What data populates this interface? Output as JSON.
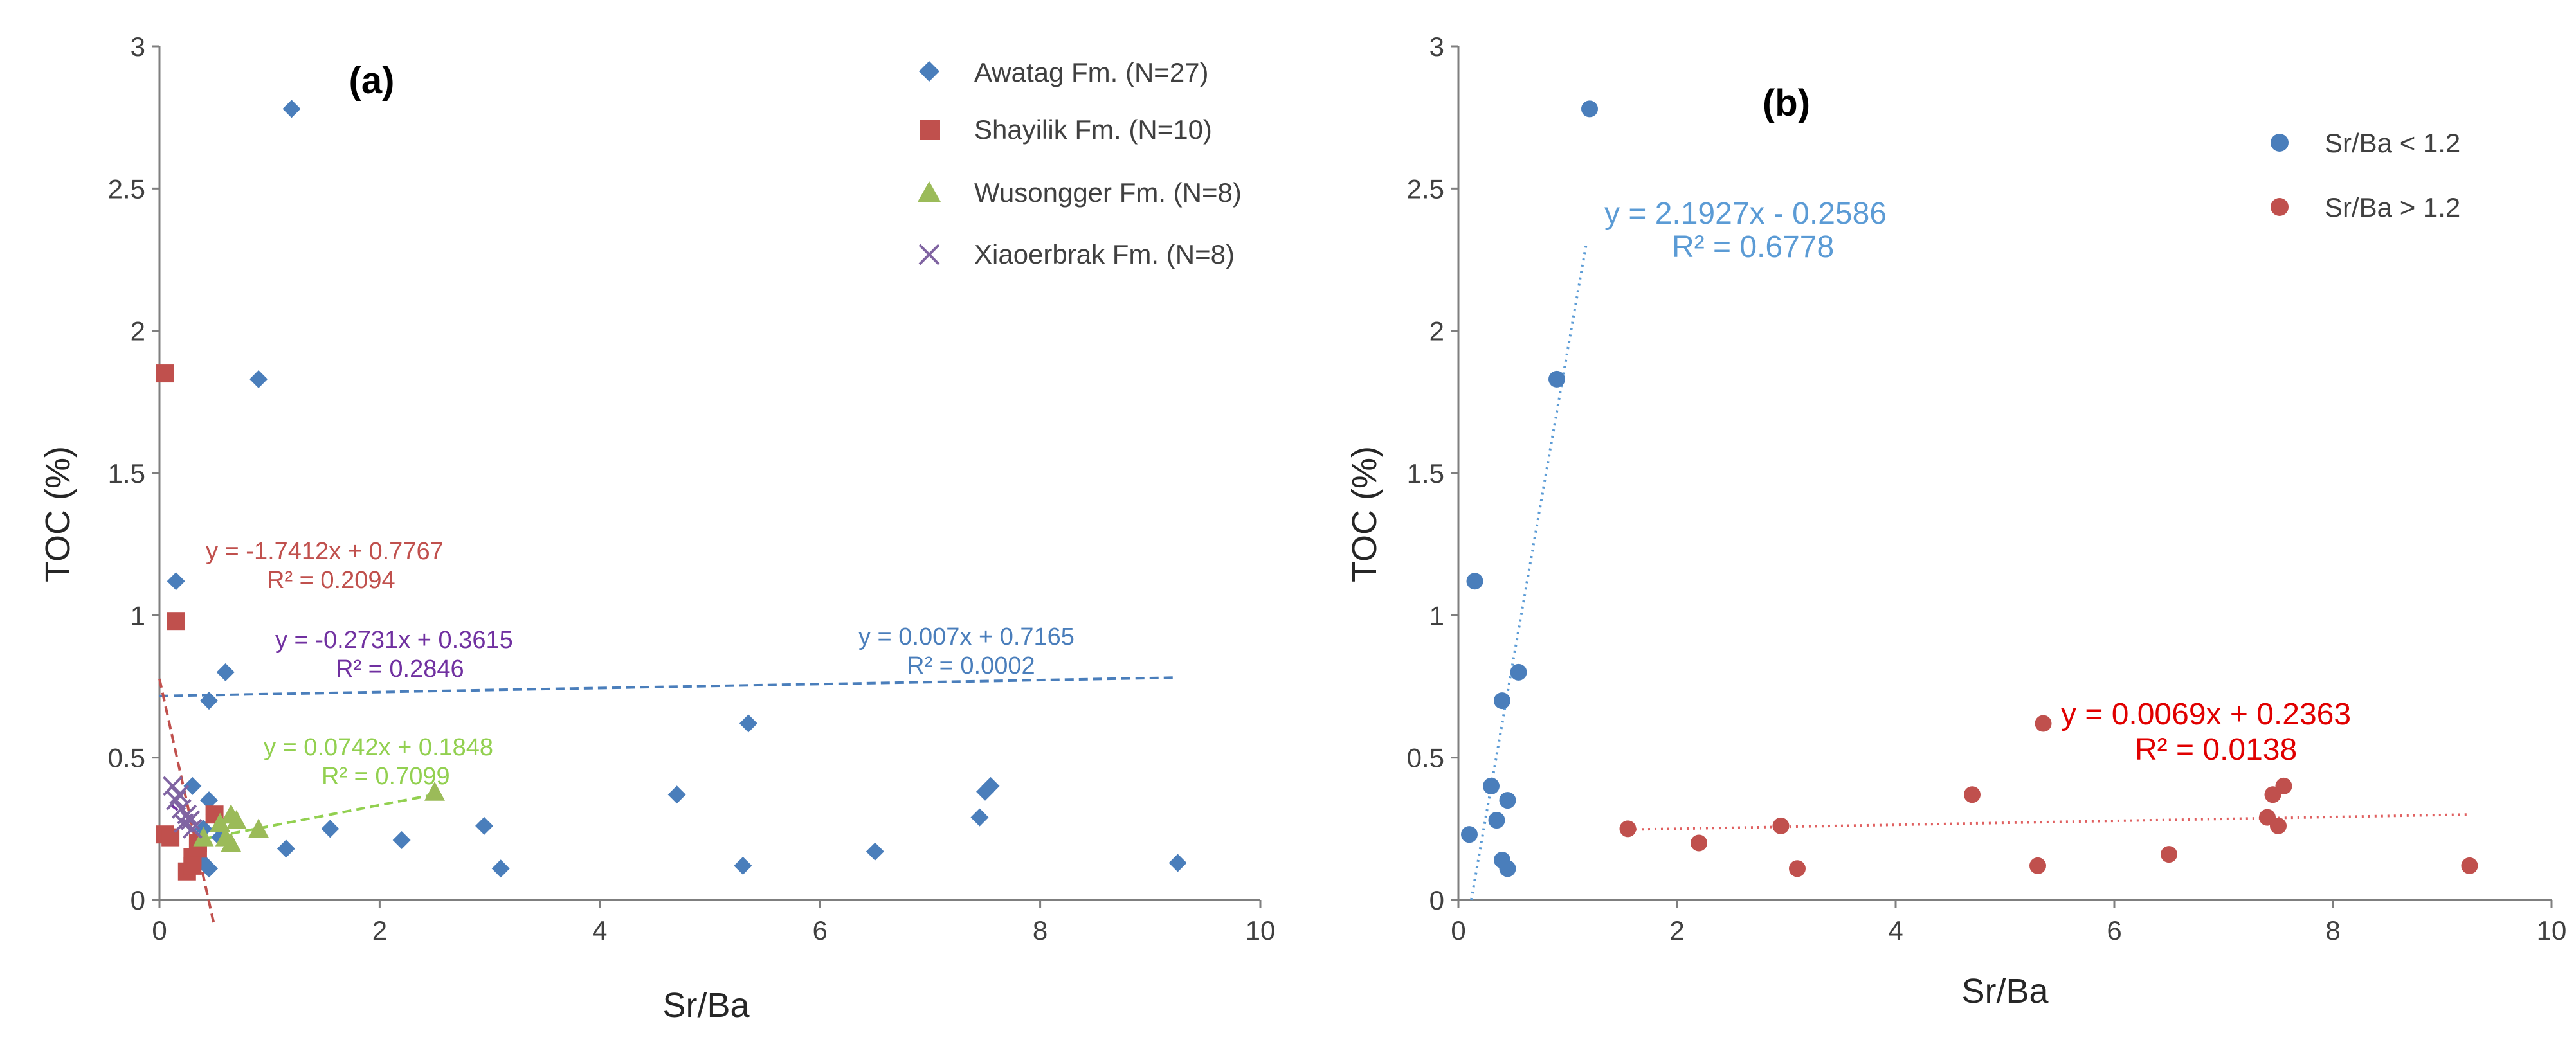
{
  "chart_data": [
    {
      "panel": "a",
      "type": "scatter",
      "panel_label": "(a)",
      "xlabel": "Sr/Ba",
      "ylabel": "TOC (%)",
      "xlim": [
        0,
        10
      ],
      "ylim": [
        0,
        3
      ],
      "xticks": [
        "0",
        "2",
        "4",
        "6",
        "8",
        "10"
      ],
      "yticks": [
        "0",
        "0.5",
        "1",
        "1.5",
        "2",
        "2.5",
        "3"
      ],
      "grid": false,
      "legend_position": "top-right",
      "series": [
        {
          "name": "Awatag Fm. (N=27)",
          "marker": "diamond",
          "color": "#4a7ebb",
          "x": [
            1.2,
            0.9,
            0.15,
            0.6,
            0.45,
            0.3,
            0.45,
            0.5,
            0.4,
            0.35,
            0.3,
            0.4,
            0.45,
            0.55,
            1.15,
            1.55,
            2.2,
            2.95,
            3.1,
            4.7,
            5.3,
            5.35,
            6.5,
            7.45,
            7.5,
            7.55,
            9.25
          ],
          "y": [
            2.78,
            1.83,
            1.12,
            0.8,
            0.7,
            0.4,
            0.35,
            0.3,
            0.25,
            0.2,
            0.15,
            0.13,
            0.11,
            0.22,
            0.18,
            0.25,
            0.21,
            0.26,
            0.11,
            0.37,
            0.12,
            0.62,
            0.17,
            0.29,
            0.38,
            0.4,
            0.13
          ]
        },
        {
          "name": "Shayilik Fm. (N=10)",
          "marker": "square",
          "color": "#c0504d",
          "x": [
            0.05,
            0.15,
            0.05,
            0.1,
            0.3,
            0.25,
            0.35,
            0.3,
            0.5,
            0.35
          ],
          "y": [
            1.85,
            0.98,
            0.23,
            0.22,
            0.15,
            0.1,
            0.18,
            0.12,
            0.3,
            0.2
          ]
        },
        {
          "name": "Wusongger Fm. (N=8)",
          "marker": "triangle",
          "color": "#9bbb59",
          "x": [
            0.55,
            0.65,
            0.6,
            0.65,
            0.7,
            0.9,
            2.5,
            0.4
          ],
          "y": [
            0.27,
            0.3,
            0.22,
            0.2,
            0.28,
            0.25,
            0.38,
            0.22
          ]
        },
        {
          "name": "Xiaoerbrak Fm. (N=8)",
          "marker": "x",
          "color": "#8064a2",
          "x": [
            0.12,
            0.15,
            0.2,
            0.25,
            0.28,
            0.3,
            0.18,
            0.22
          ],
          "y": [
            0.4,
            0.35,
            0.32,
            0.3,
            0.28,
            0.25,
            0.37,
            0.27
          ]
        }
      ],
      "trendlines": [
        {
          "series": "Awatag Fm. (N=27)",
          "slope": 0.007,
          "intercept": 0.7165,
          "x_range": [
            0,
            9.25
          ],
          "style": "dashed",
          "color": "#4a7ebb",
          "equation": "y = 0.007x + 0.7165",
          "r2": "R² = 0.0002"
        },
        {
          "series": "Shayilik Fm. (N=10)",
          "slope": -1.7412,
          "intercept": 0.7767,
          "x_range": [
            0,
            0.5
          ],
          "style": "dashed",
          "color": "#c0504d",
          "equation": "y = -1.7412x + 0.7767",
          "r2": "R² = 0.2094"
        },
        {
          "series": "Xiaoerbrak Fm. (N=8)",
          "slope": -0.2731,
          "intercept": 0.3615,
          "x_range": [
            0.1,
            0.3
          ],
          "style": "dashed",
          "color": "#7030a0",
          "equation": "y = -0.2731x + 0.3615",
          "r2": "R² = 0.2846"
        },
        {
          "series": "Wusongger Fm. (N=8)",
          "slope": 0.0742,
          "intercept": 0.1848,
          "x_range": [
            0.4,
            2.5
          ],
          "style": "dashed",
          "color": "#92d050",
          "equation": "y = 0.0742x + 0.1848",
          "r2": "R² = 0.7099"
        }
      ]
    },
    {
      "panel": "b",
      "type": "scatter",
      "panel_label": "(b)",
      "xlabel": "Sr/Ba",
      "ylabel": "TOC (%)",
      "xlim": [
        0,
        10
      ],
      "ylim": [
        0,
        3
      ],
      "xticks": [
        "0",
        "2",
        "4",
        "6",
        "8",
        "10"
      ],
      "yticks": [
        "0",
        "0.5",
        "1",
        "1.5",
        "2",
        "2.5",
        "3"
      ],
      "grid": false,
      "legend_position": "top-right",
      "series": [
        {
          "name": "Sr/Ba < 1.2",
          "marker": "circle",
          "color": "#4a7ebb",
          "x": [
            1.2,
            0.9,
            0.15,
            0.55,
            0.4,
            0.3,
            0.45,
            0.35,
            0.1,
            0.4,
            0.45
          ],
          "y": [
            2.78,
            1.83,
            1.12,
            0.8,
            0.7,
            0.4,
            0.35,
            0.28,
            0.23,
            0.14,
            0.11
          ]
        },
        {
          "name": "Sr/Ba > 1.2",
          "marker": "circle",
          "color": "#c0504d",
          "x": [
            1.55,
            2.2,
            2.95,
            3.1,
            4.7,
            5.3,
            5.35,
            6.5,
            7.4,
            7.45,
            7.5,
            7.55,
            9.25
          ],
          "y": [
            0.25,
            0.2,
            0.26,
            0.11,
            0.37,
            0.12,
            0.62,
            0.16,
            0.29,
            0.37,
            0.26,
            0.4,
            0.12
          ]
        }
      ],
      "trendlines": [
        {
          "series": "Sr/Ba < 1.2",
          "slope": 2.1927,
          "intercept": -0.2586,
          "x_range": [
            0.118,
            1.17
          ],
          "style": "dotted",
          "color": "#5b9bd5",
          "equation": "y = 2.1927x - 0.2586",
          "r2": "R² = 0.6778"
        },
        {
          "series": "Sr/Ba > 1.2",
          "slope": 0.0069,
          "intercept": 0.2363,
          "x_range": [
            1.5,
            9.25
          ],
          "style": "dotted",
          "color": "#e06060",
          "equation": "y = 0.0069x + 0.2363",
          "r2": "R² = 0.0138"
        }
      ]
    }
  ]
}
